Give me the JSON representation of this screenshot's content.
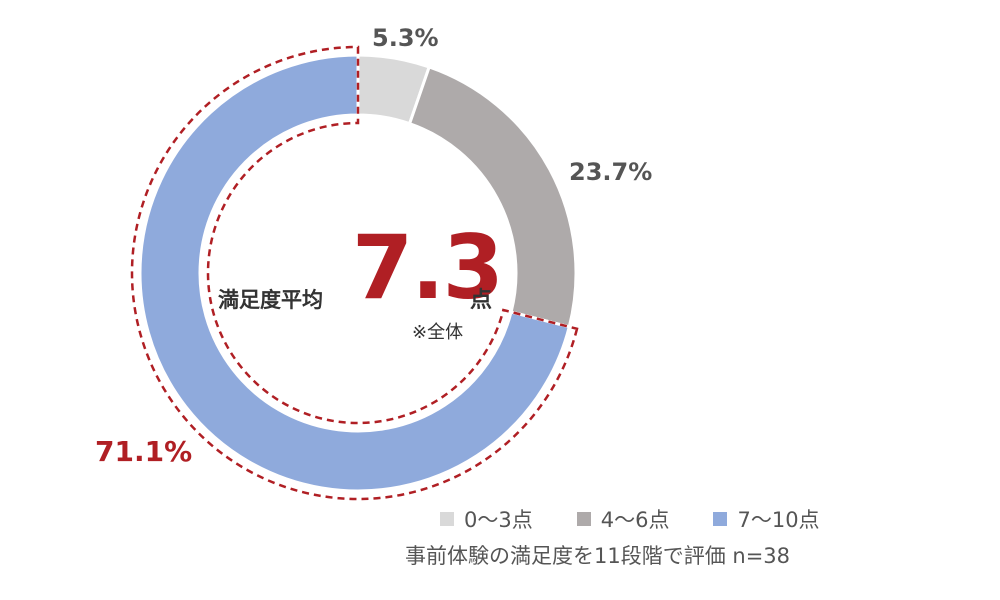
{
  "chart_data": {
    "type": "pie",
    "donut": true,
    "categories": [
      "0～3点",
      "4～6点",
      "7～10点"
    ],
    "values": [
      5.3,
      23.7,
      71.1
    ],
    "value_labels": [
      "5.3%",
      "23.7%",
      "71.1%"
    ],
    "colors": [
      "#d9d9d9",
      "#aeaaaa",
      "#8faadc"
    ],
    "highlight_color": "#b01f24",
    "highlighted_category": "7～10点",
    "legend_position": "bottom-right",
    "center": {
      "label": "満足度平均",
      "value": "7.3",
      "unit": "点",
      "note": "※全体"
    },
    "footnote": "事前体験の満足度を11段階で評価 n=38"
  }
}
